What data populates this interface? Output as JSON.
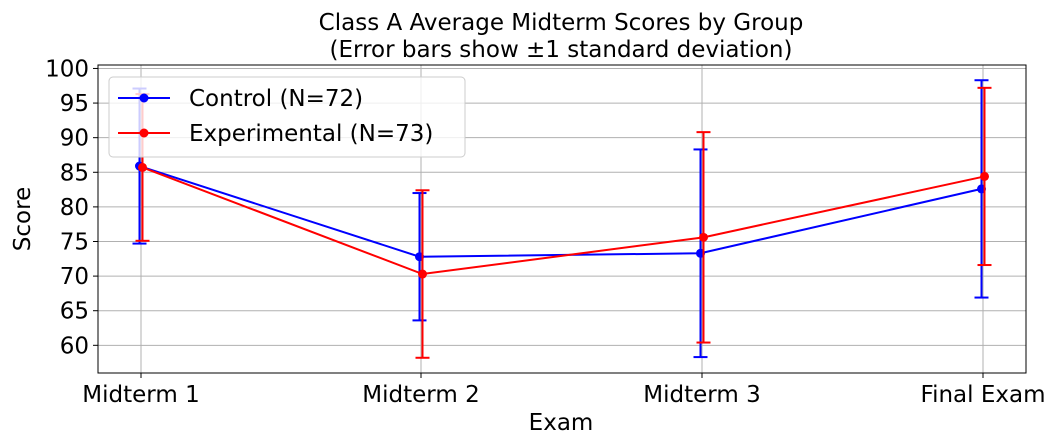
{
  "chart_data": {
    "type": "line",
    "title": "Class A Average Midterm Scores by Group",
    "subtitle": "(Error bars show ±1 standard deviation)",
    "xlabel": "Exam",
    "ylabel": "Score",
    "categories": [
      "Midterm 1",
      "Midterm 2",
      "Midterm 3",
      "Final Exam"
    ],
    "ylim": [
      56,
      100.5
    ],
    "yticks": [
      60,
      65,
      70,
      75,
      80,
      85,
      90,
      95,
      100
    ],
    "grid": true,
    "legend_position": "top-left",
    "series": [
      {
        "name": "Control (N=72)",
        "color": "#0000ff",
        "values": [
          85.9,
          72.8,
          73.3,
          82.6
        ],
        "error": [
          11.2,
          9.2,
          15.0,
          15.7
        ]
      },
      {
        "name": "Experimental (N=73)",
        "color": "#ff0000",
        "values": [
          85.7,
          70.3,
          75.6,
          84.4
        ],
        "error": [
          10.6,
          12.1,
          15.2,
          12.8
        ]
      }
    ]
  }
}
